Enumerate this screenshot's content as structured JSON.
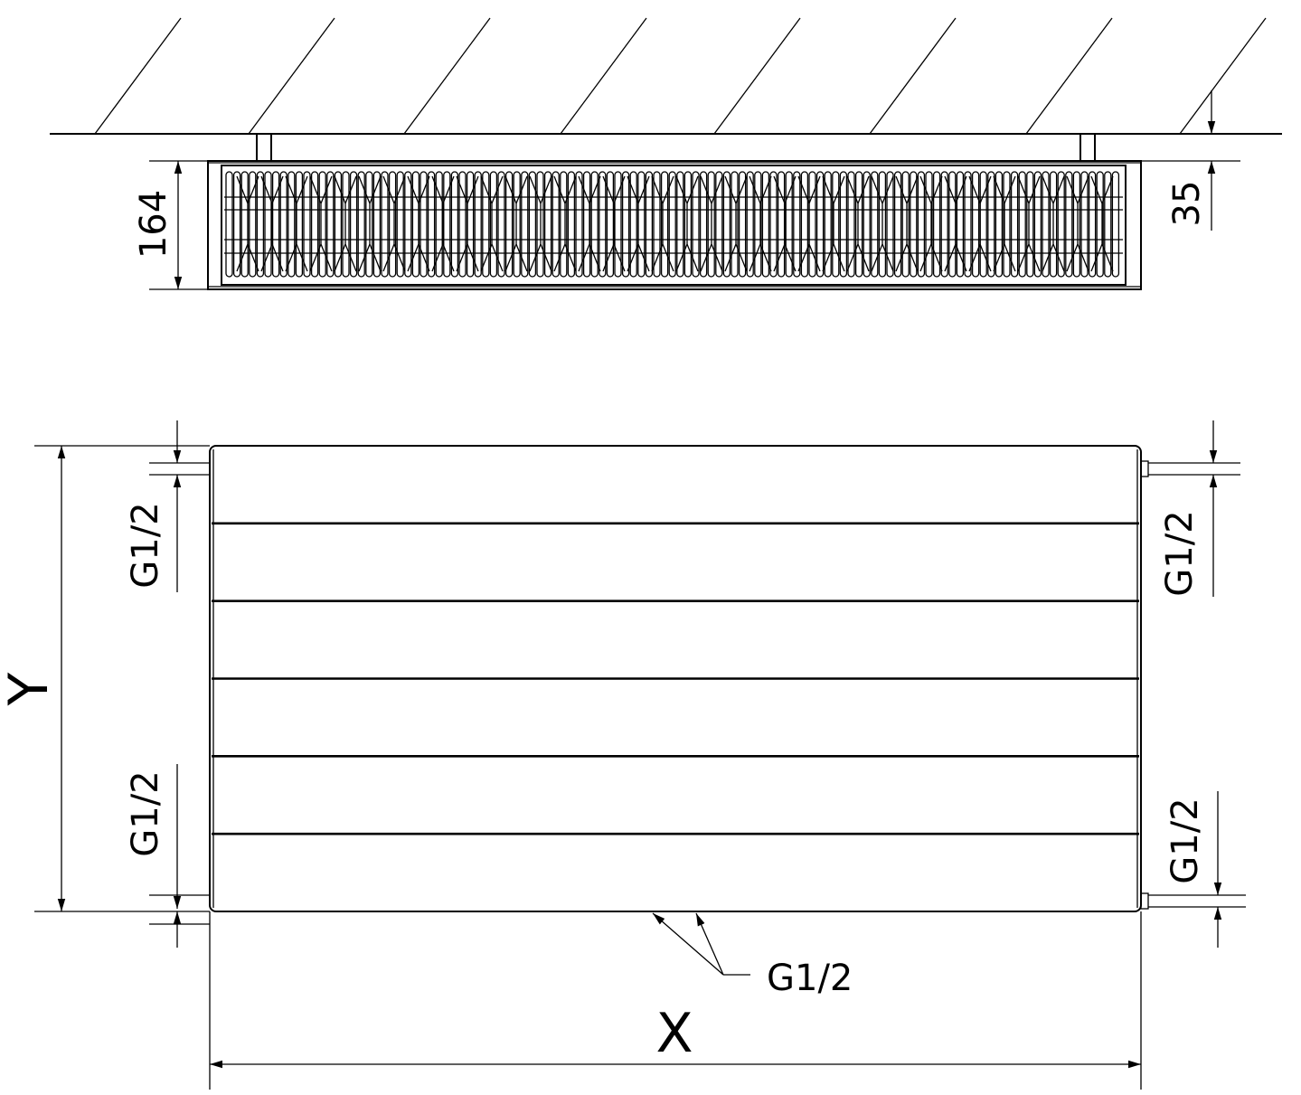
{
  "top_view": {
    "depth_label": "164",
    "wall_offset_label": "35"
  },
  "front_view": {
    "height_label": "Y",
    "width_label": "X",
    "left_top_connection": "G1/2",
    "left_bottom_connection": "G1/2",
    "right_top_connection": "G1/2",
    "right_bottom_connection": "G1/2",
    "bottom_connection": "G1/2",
    "panel_stripes": 6
  },
  "colors": {
    "line": "#000000",
    "background": "#ffffff"
  }
}
